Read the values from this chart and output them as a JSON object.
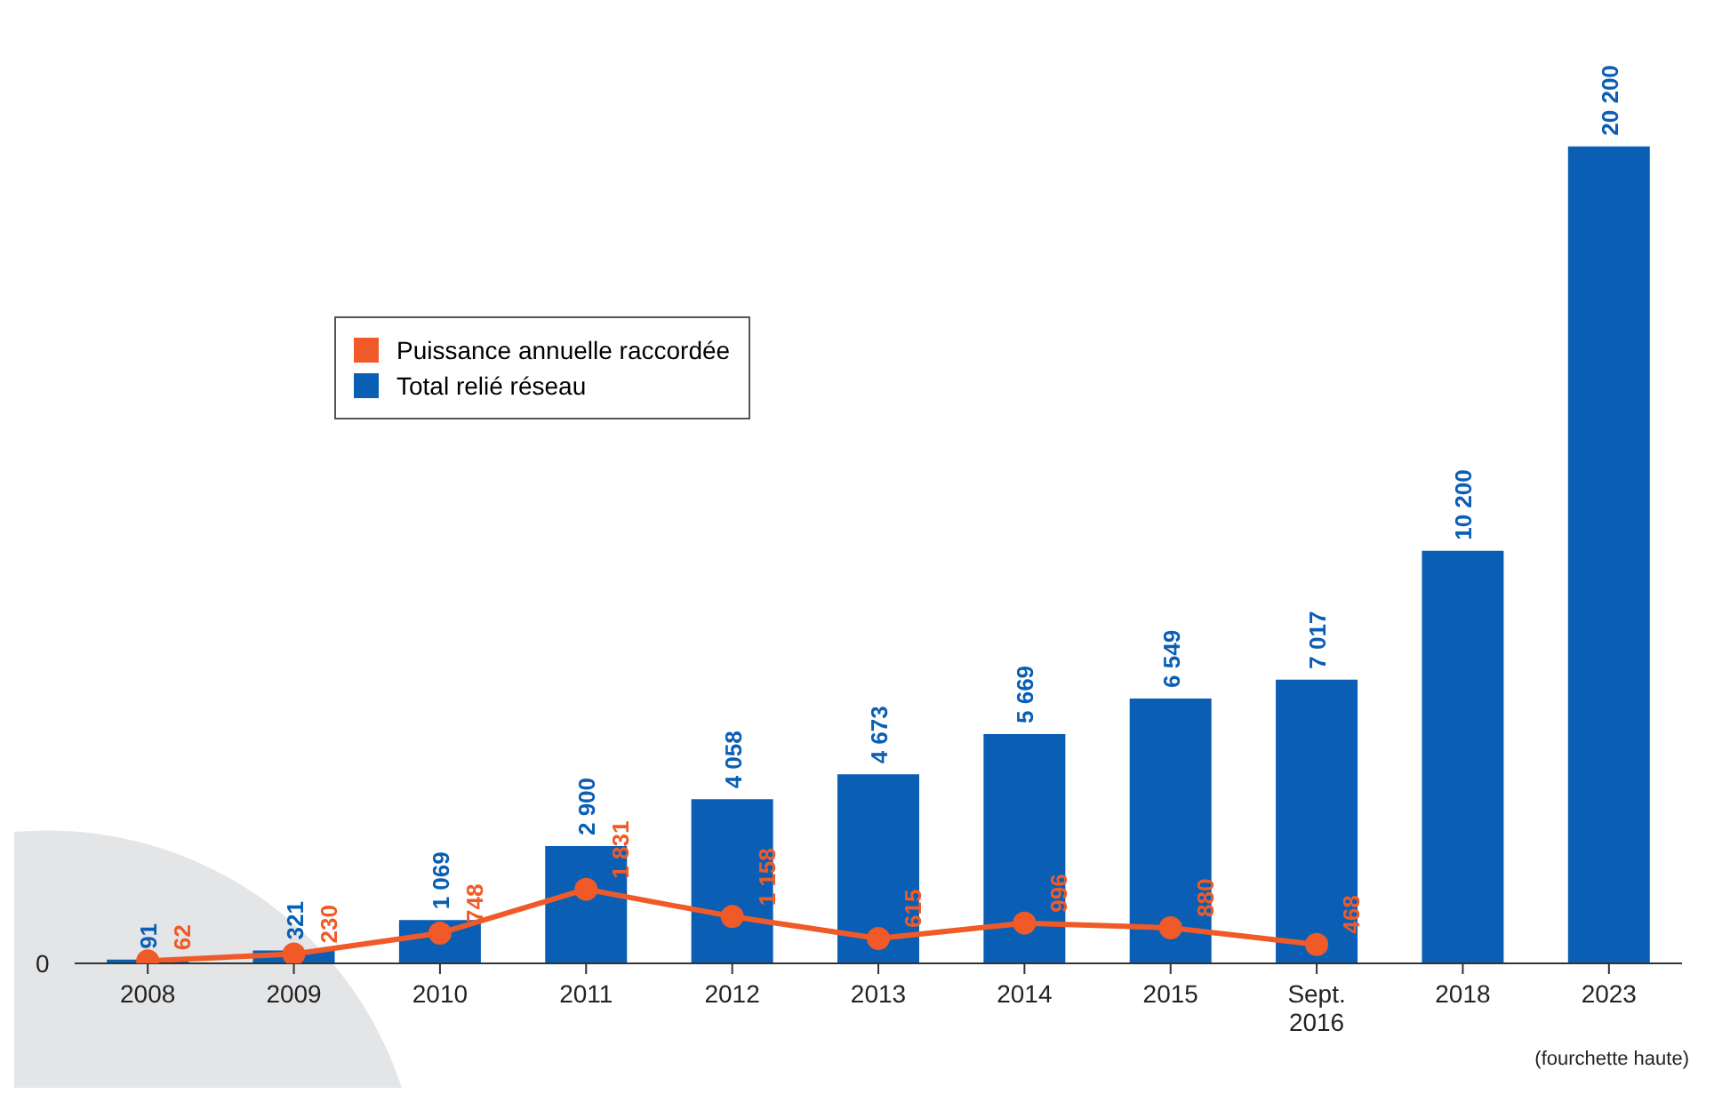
{
  "chart_data": {
    "type": "bar",
    "categories": [
      "2008",
      "2009",
      "2010",
      "2011",
      "2012",
      "2013",
      "2014",
      "2015",
      "Sept. 2016",
      "2018",
      "2023"
    ],
    "series": [
      {
        "name": "Puissance annuelle raccordée",
        "type": "line",
        "color": "#f05a28",
        "values": [
          62,
          230,
          748,
          1831,
          1158,
          615,
          996,
          880,
          468,
          null,
          null
        ]
      },
      {
        "name": "Total relié réseau",
        "color": "#0a5fb4",
        "values": [
          91,
          321,
          1069,
          2900,
          4058,
          4673,
          5669,
          6549,
          7017,
          10200,
          20200
        ]
      }
    ],
    "data_labels": true,
    "legend": "top left",
    "grid": false,
    "marker": "circle",
    "annotations": [
      "0",
      "(fourchette haute)"
    ]
  }
}
